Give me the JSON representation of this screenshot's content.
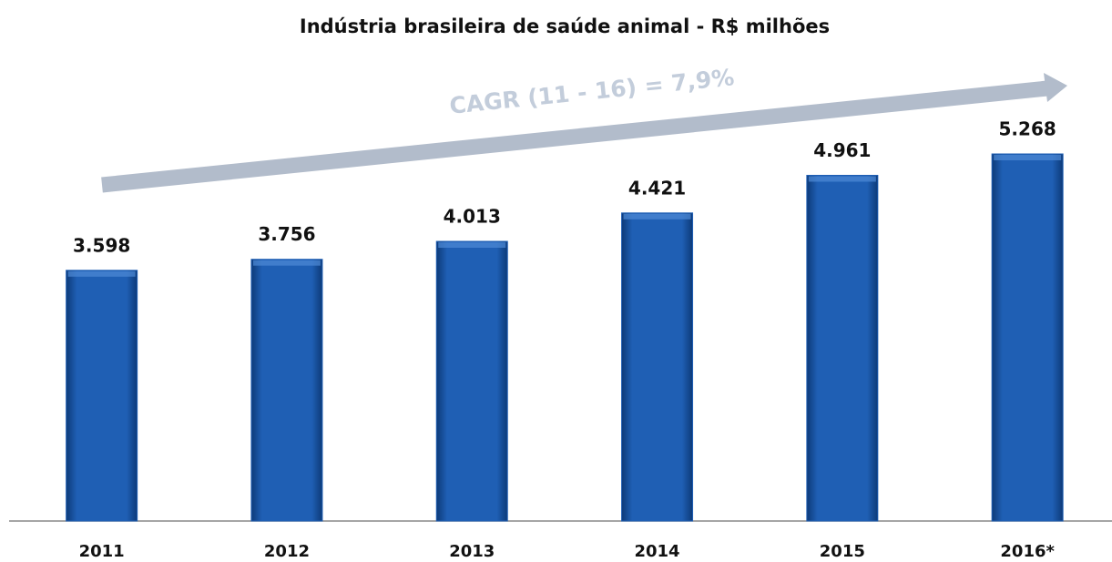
{
  "chart_data": {
    "type": "bar",
    "title": "Indústria brasileira de saúde animal - R$ milhões",
    "annotation": "CAGR (11 - 16) = 7,9%",
    "categories": [
      "2011",
      "2012",
      "2013",
      "2014",
      "2015",
      "2016*"
    ],
    "values": [
      3598,
      3756,
      4013,
      4421,
      4961,
      5268
    ],
    "value_labels": [
      "3.598",
      "3.756",
      "4.013",
      "4.421",
      "4.961",
      "5.268"
    ],
    "color": "#1f5fb4"
  }
}
